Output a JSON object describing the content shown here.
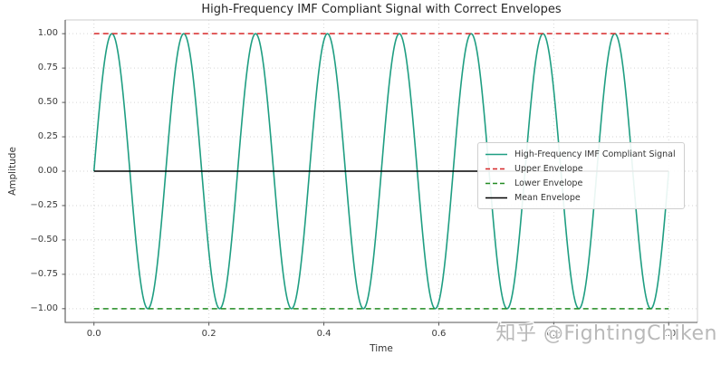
{
  "chart_data": {
    "type": "line",
    "title": "High-Frequency IMF Compliant Signal with Correct Envelopes",
    "xlabel": "Time",
    "ylabel": "Amplitude",
    "xlim": [
      -0.05,
      1.05
    ],
    "ylim": [
      -1.1,
      1.1
    ],
    "grid": {
      "on": true,
      "linestyle": "dotted",
      "color": "#d6d6d6"
    },
    "x_ticks": [
      {
        "value": 0.0,
        "label": "0.0"
      },
      {
        "value": 0.2,
        "label": "0.2"
      },
      {
        "value": 0.4,
        "label": "0.4"
      },
      {
        "value": 0.6,
        "label": "0.6"
      },
      {
        "value": 0.8,
        "label": "0.8"
      },
      {
        "value": 1.0,
        "label": "1.0"
      }
    ],
    "y_ticks": [
      {
        "value": 1.0,
        "label": "1.00"
      },
      {
        "value": 0.75,
        "label": "0.75"
      },
      {
        "value": 0.5,
        "label": "0.50"
      },
      {
        "value": 0.25,
        "label": "0.25"
      },
      {
        "value": 0.0,
        "label": "0.00"
      },
      {
        "value": -0.25,
        "label": "−0.25"
      },
      {
        "value": -0.5,
        "label": "−0.50"
      },
      {
        "value": -0.75,
        "label": "−0.75"
      },
      {
        "value": -1.0,
        "label": "−1.00"
      }
    ],
    "series": [
      {
        "name": "High-Frequency IMF Compliant Signal",
        "kind": "sine",
        "amplitude": 1.0,
        "frequency_hz": 8,
        "phase": 0.0,
        "x_start": 0.0,
        "x_end": 1.0,
        "color": "#1f9e82",
        "linestyle": "solid",
        "linewidth": 1.6
      },
      {
        "name": "Upper Envelope",
        "kind": "constant",
        "value": 1.0,
        "x_start": 0.0,
        "x_end": 1.0,
        "color": "#d62728",
        "linestyle": "dashed",
        "linewidth": 1.5
      },
      {
        "name": "Lower Envelope",
        "kind": "constant",
        "value": -1.0,
        "x_start": 0.0,
        "x_end": 1.0,
        "color": "#228b22",
        "linestyle": "dashed",
        "linewidth": 1.5
      },
      {
        "name": "Mean Envelope",
        "kind": "constant",
        "value": 0.0,
        "x_start": 0.0,
        "x_end": 1.0,
        "color": "#000000",
        "linestyle": "solid",
        "linewidth": 1.4
      }
    ],
    "legend": {
      "visible": true,
      "location": "center right"
    }
  },
  "watermark": {
    "text": "知乎 @FightingChiken",
    "color": "#b9b9b9"
  }
}
